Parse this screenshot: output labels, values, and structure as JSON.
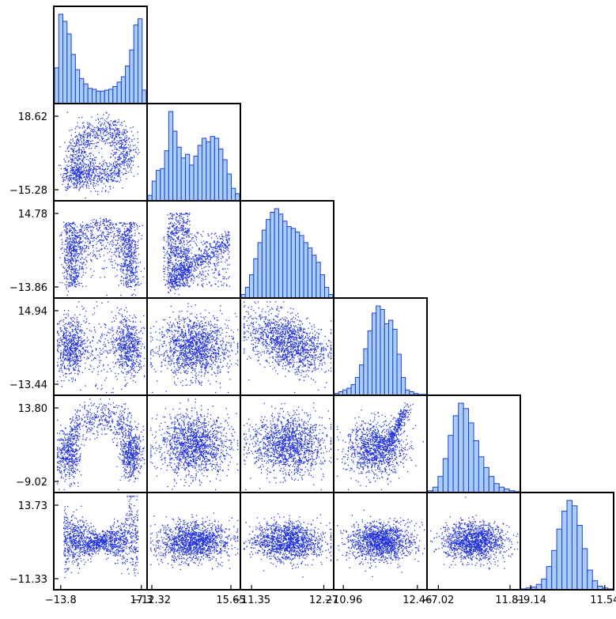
{
  "chart_data": {
    "type": "corner-plot",
    "n_vars": 6,
    "variables": [
      {
        "range": [
          -16.5,
          19.5
        ],
        "ticks": [
          -13.8,
          17.3
        ],
        "tick_labels": [
          "−13.8",
          "17.3"
        ]
      },
      {
        "range": [
          -14.0,
          19.0
        ],
        "ticks": [
          -12.32,
          15.65
        ],
        "tick_labels": [
          "−12.32",
          "15.65"
        ]
      },
      {
        "range": [
          -15.0,
          15.5
        ],
        "ticks": [
          -11.35,
          12.27
        ],
        "tick_labels": [
          "−11.35",
          "12.27"
        ]
      },
      {
        "range": [
          -14.0,
          15.5
        ],
        "ticks": [
          -10.96,
          12.46
        ],
        "tick_labels": [
          "−10.96",
          "12.46"
        ]
      },
      {
        "range": [
          -10.0,
          14.5
        ],
        "ticks": [
          -7.02,
          11.81
        ],
        "tick_labels": [
          "−7.02",
          "11.81"
        ]
      },
      {
        "range": [
          -12.0,
          14.0
        ],
        "ticks": [
          -9.14,
          11.54
        ],
        "tick_labels": [
          "−9.14",
          "11.54"
        ]
      }
    ],
    "row_axis_labels": [
      {
        "row": 1,
        "ticks": [
          18.62,
          -15.28
        ],
        "tick_labels": [
          "18.62",
          "−15.28"
        ]
      },
      {
        "row": 2,
        "ticks": [
          14.78,
          -13.86
        ],
        "tick_labels": [
          "14.78",
          "−13.86"
        ]
      },
      {
        "row": 3,
        "ticks": [
          14.94,
          -13.44
        ],
        "tick_labels": [
          "14.94",
          "−13.44"
        ]
      },
      {
        "row": 4,
        "ticks": [
          13.8,
          -9.02
        ],
        "tick_labels": [
          "13.80",
          "−9.02"
        ]
      },
      {
        "row": 5,
        "ticks": [
          13.73,
          -11.33
        ],
        "tick_labels": [
          "13.73",
          "−11.33"
        ]
      }
    ],
    "histograms": [
      {
        "var": 0,
        "counts": [
          40,
          100,
          92,
          78,
          55,
          38,
          28,
          22,
          17,
          16,
          14,
          14,
          15,
          16,
          19,
          24,
          30,
          42,
          60,
          88,
          95,
          15
        ]
      },
      {
        "var": 1,
        "counts": [
          6,
          22,
          34,
          36,
          56,
          100,
          78,
          60,
          48,
          52,
          40,
          50,
          62,
          70,
          66,
          72,
          70,
          58,
          46,
          30,
          14,
          8
        ]
      },
      {
        "var": 2,
        "counts": [
          4,
          12,
          26,
          44,
          62,
          76,
          88,
          96,
          100,
          94,
          86,
          80,
          78,
          74,
          70,
          62,
          56,
          48,
          40,
          26,
          12,
          4
        ]
      },
      {
        "var": 3,
        "counts": [
          2,
          4,
          6,
          8,
          12,
          20,
          34,
          52,
          72,
          92,
          100,
          96,
          80,
          84,
          74,
          46,
          20,
          6,
          4,
          2,
          1,
          1
        ]
      },
      {
        "var": 4,
        "counts": [
          2,
          6,
          18,
          38,
          64,
          86,
          100,
          94,
          78,
          58,
          40,
          28,
          18,
          10,
          6,
          4,
          2,
          1
        ]
      },
      {
        "var": 5,
        "counts": [
          1,
          2,
          3,
          6,
          12,
          26,
          44,
          68,
          88,
          100,
          94,
          72,
          46,
          22,
          10,
          4,
          2,
          1
        ]
      }
    ],
    "scatter_panels": [
      {
        "row": 1,
        "col": 0,
        "shape": "ring with lower-left clump"
      },
      {
        "row": 2,
        "col": 0,
        "shape": "inverted-U band"
      },
      {
        "row": 2,
        "col": 1,
        "shape": "triangular spread"
      },
      {
        "row": 3,
        "col": 0,
        "shape": "two side clusters"
      },
      {
        "row": 3,
        "col": 1,
        "shape": "wide cloud"
      },
      {
        "row": 3,
        "col": 2,
        "shape": "tilted cloud"
      },
      {
        "row": 3,
        "col": 3,
        "shape": "none"
      },
      {
        "row": 4,
        "col": 0,
        "shape": "two side clusters with arc"
      },
      {
        "row": 4,
        "col": 1,
        "shape": "wide cloud"
      },
      {
        "row": 4,
        "col": 2,
        "shape": "wide cloud"
      },
      {
        "row": 4,
        "col": 3,
        "shape": "cloud with upper-right arm"
      },
      {
        "row": 5,
        "col": 0,
        "shape": "bow-tie"
      },
      {
        "row": 5,
        "col": 1,
        "shape": "horizontal band"
      },
      {
        "row": 5,
        "col": 2,
        "shape": "horizontal band"
      },
      {
        "row": 5,
        "col": 3,
        "shape": "compact ellipse"
      },
      {
        "row": 5,
        "col": 4,
        "shape": "compact ellipse"
      }
    ],
    "colors": {
      "points": "#2233dd",
      "hist_fill": "#a9cdf5",
      "hist_edge": "#1f3fd6",
      "frame": "#000000"
    },
    "grid": false
  }
}
